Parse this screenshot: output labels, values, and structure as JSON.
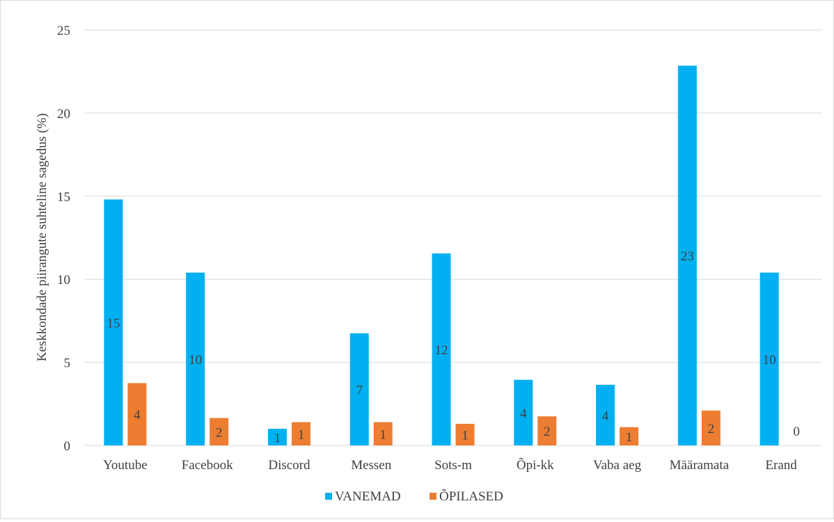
{
  "chart_data": {
    "type": "bar",
    "ylabel": "Keskkondade piirangute suhteline sagedus (%)",
    "xlabel": "",
    "ylim": [
      0,
      25
    ],
    "yticks": [
      0,
      5,
      10,
      15,
      20,
      25
    ],
    "grid": "horizontal",
    "legend_position": "bottom",
    "categories": [
      "Youtube",
      "Facebook",
      "Discord",
      "Messen",
      "Sots-m",
      "Õpi-kk",
      "Vaba aeg",
      "Määramata",
      "Erand"
    ],
    "series": [
      {
        "name": "VANEMAD",
        "color": "#00b0f0",
        "values": [
          14.8,
          10.4,
          1.0,
          6.75,
          11.55,
          3.95,
          3.65,
          22.85,
          10.4
        ],
        "labels": [
          "15",
          "10",
          "1",
          "7",
          "12",
          "4",
          "4",
          "23",
          "10"
        ]
      },
      {
        "name": "ÕPILASED",
        "color": "#ed7d31",
        "values": [
          3.75,
          1.65,
          1.4,
          1.4,
          1.3,
          1.75,
          1.1,
          2.1,
          0
        ],
        "labels": [
          "4",
          "2",
          "1",
          "1",
          "1",
          "2",
          "1",
          "2",
          "0"
        ]
      }
    ]
  }
}
